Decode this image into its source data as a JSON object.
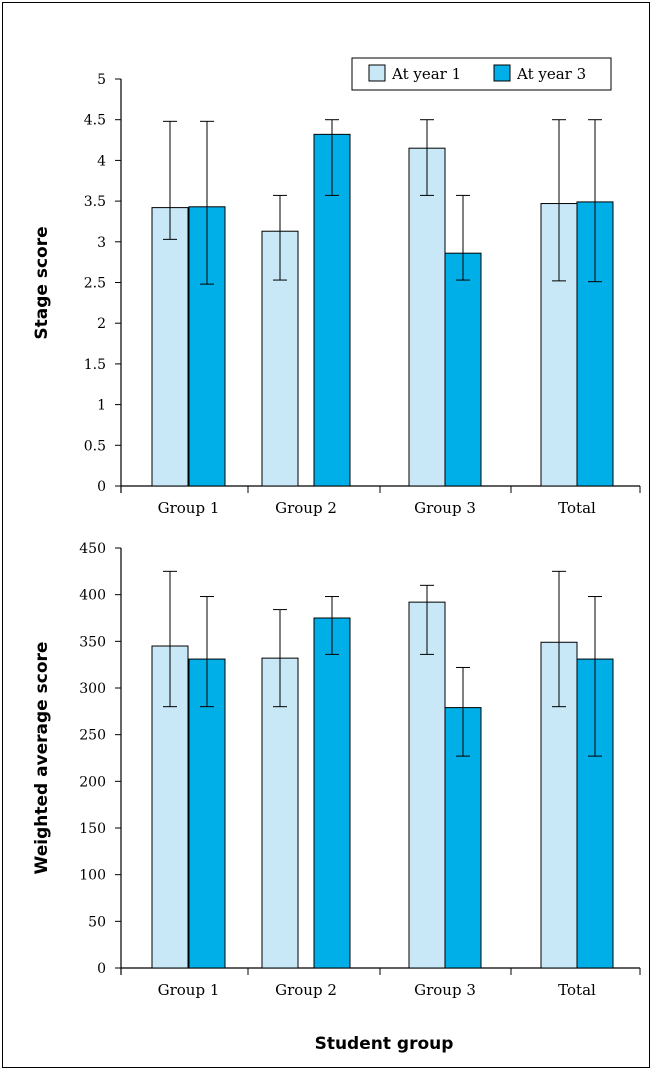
{
  "colors": {
    "year1": "#c8e8f8",
    "year3": "#00aee8",
    "stroke": "#000000"
  },
  "legend": {
    "items": [
      "At year 1",
      "At year 3"
    ]
  },
  "xlabel": "Student group",
  "chart_data": [
    {
      "type": "bar",
      "categories": [
        "Group 1",
        "Group 2",
        "Group 3",
        "Total"
      ],
      "ylabel": "Stage score",
      "ylim": [
        0,
        5
      ],
      "yticks": [
        "0",
        "0.5",
        "1",
        "1.5",
        "2",
        "2.5",
        "3",
        "3.5",
        "4",
        "4.5",
        "5"
      ],
      "series": [
        {
          "name": "At year 1",
          "values": [
            3.42,
            3.13,
            4.15,
            3.47
          ],
          "err_low": [
            3.03,
            2.53,
            3.57,
            2.52
          ],
          "err_high": [
            4.48,
            3.57,
            4.5,
            4.5
          ]
        },
        {
          "name": "At year 3",
          "values": [
            3.43,
            4.32,
            2.86,
            3.49
          ],
          "err_low": [
            2.48,
            3.57,
            2.53,
            2.51
          ],
          "err_high": [
            4.48,
            4.5,
            3.57,
            4.5
          ]
        }
      ],
      "legend": "top-right",
      "grid": false
    },
    {
      "type": "bar",
      "categories": [
        "Group 1",
        "Group 2",
        "Group 3",
        "Total"
      ],
      "ylabel": "Weighted average score",
      "ylim": [
        0,
        450
      ],
      "yticks": [
        "0",
        "50",
        "100",
        "150",
        "200",
        "250",
        "300",
        "350",
        "400",
        "450"
      ],
      "series": [
        {
          "name": "At year 1",
          "values": [
            345,
            332,
            392,
            349
          ],
          "err_low": [
            280,
            280,
            336,
            280
          ],
          "err_high": [
            425,
            384,
            410,
            425
          ]
        },
        {
          "name": "At year 3",
          "values": [
            331,
            375,
            279,
            331
          ],
          "err_low": [
            280,
            336,
            227,
            227
          ],
          "err_high": [
            398,
            398,
            322,
            398
          ]
        }
      ],
      "grid": false
    }
  ]
}
